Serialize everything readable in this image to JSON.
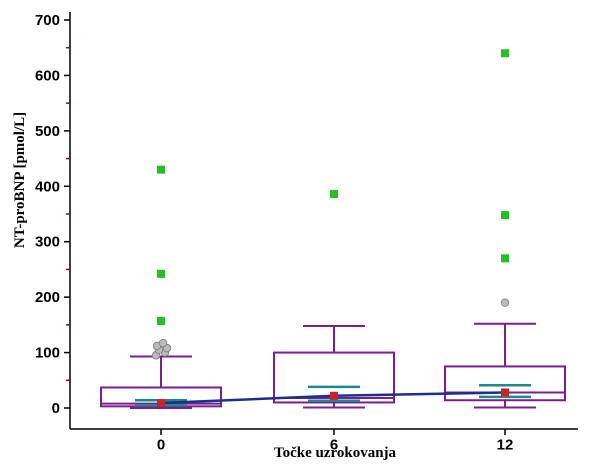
{
  "chart_data": {
    "type": "box",
    "xlabel": "Točke uzrokovanja",
    "ylabel": "NT-proBNP [pmol/L]",
    "ylim": [
      0,
      700
    ],
    "yticks": [
      0,
      100,
      200,
      300,
      400,
      500,
      600,
      700
    ],
    "categories": [
      "0",
      "6",
      "12"
    ],
    "boxes": [
      {
        "category": "0",
        "whisker_low": 0,
        "q1": 3,
        "median": 8,
        "q3": 37,
        "whisker_high": 93,
        "mean": 9,
        "ci": [
          5,
          14
        ]
      },
      {
        "category": "6",
        "whisker_low": 1,
        "q1": 10,
        "median": 18,
        "q3": 100,
        "whisker_high": 148,
        "mean": 22,
        "ci": [
          13,
          38
        ]
      },
      {
        "category": "12",
        "whisker_low": 1,
        "q1": 14,
        "median": 28,
        "q3": 75,
        "whisker_high": 152,
        "mean": 28,
        "ci": [
          20,
          41
        ]
      }
    ],
    "mean_trend": [
      9,
      22,
      28
    ],
    "outliers": [
      {
        "category": "0",
        "values": [
          95,
          100,
          105,
          108,
          112,
          117
        ]
      },
      {
        "category": "12",
        "values": [
          190
        ]
      }
    ],
    "far_outliers": [
      {
        "category": "0",
        "values": [
          157,
          242,
          430
        ]
      },
      {
        "category": "6",
        "values": [
          386
        ]
      },
      {
        "category": "12",
        "values": [
          270,
          348,
          640
        ]
      }
    ],
    "colors": {
      "box": "#7a1f8c",
      "ci": "#1a8a8f",
      "mean": "#cc2222",
      "trend": "#1c2f8c",
      "far_outlier": "#22c022",
      "outlier": "#bbbbbb",
      "minor_tick": "#7a1010"
    }
  }
}
